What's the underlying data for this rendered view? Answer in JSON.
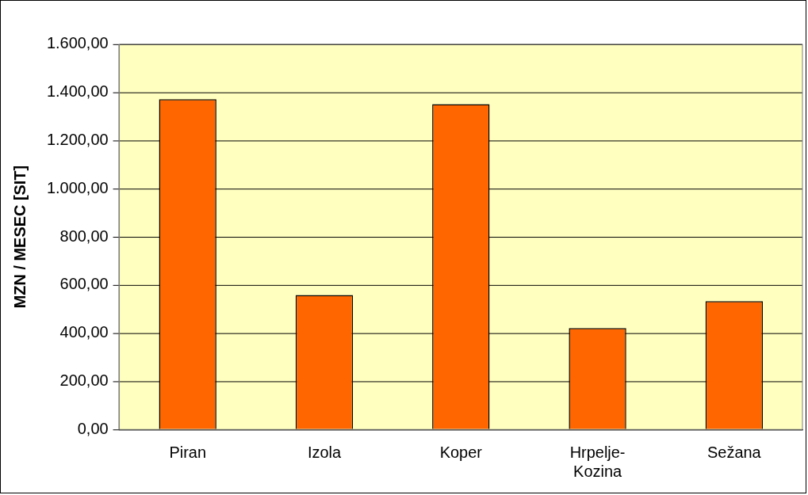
{
  "chart_data": {
    "type": "bar",
    "ylabel": "MZN / MESEC [SIT]",
    "categories": [
      "Piran",
      "Izola",
      "Koper",
      "Hrpelje-Kozina",
      "Sežana"
    ],
    "values": [
      1372,
      558,
      1351,
      421,
      533
    ],
    "color": "#ff6600",
    "ylim": [
      0,
      1600
    ],
    "yticks": [
      {
        "value": 0,
        "label": "0,00"
      },
      {
        "value": 200,
        "label": "200,00"
      },
      {
        "value": 400,
        "label": "400,00"
      },
      {
        "value": 600,
        "label": "600,00"
      },
      {
        "value": 800,
        "label": "800,00"
      },
      {
        "value": 1000,
        "label": "1.000,00"
      },
      {
        "value": 1200,
        "label": "1.200,00"
      },
      {
        "value": 1400,
        "label": "1.400,00"
      },
      {
        "value": 1600,
        "label": "1.600,00"
      }
    ],
    "grid": "y"
  }
}
